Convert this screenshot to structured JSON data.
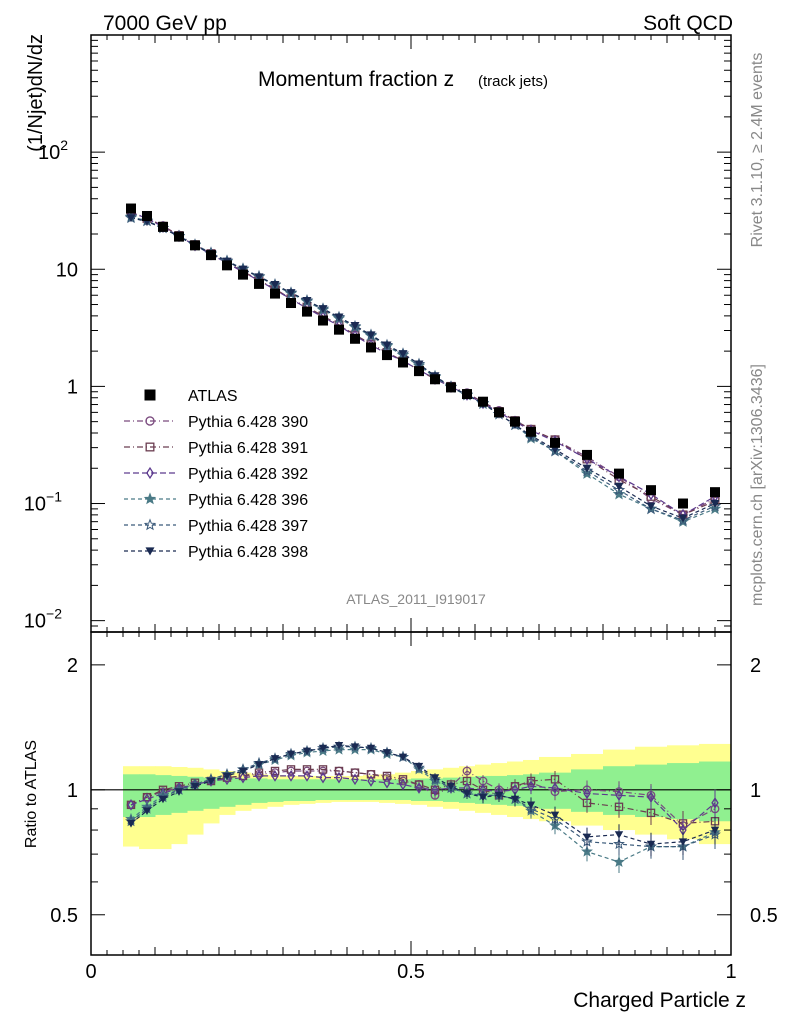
{
  "header": {
    "left": "7000 GeV pp",
    "right": "Soft QCD"
  },
  "side_labels": {
    "upper": "Rivet 3.1.10, ≥ 2.4M events",
    "lower": "mcplots.cern.ch [arXiv:1306.3436]"
  },
  "colors": {
    "band_inner": "#90f090",
    "band_outer": "#ffff90"
  },
  "chart_data": [
    {
      "type": "scatter",
      "title": "Momentum fraction z",
      "title_sub": "(track jets)",
      "watermark": "ATLAS_2011_I919017",
      "xlabel": "Charged Particle z",
      "ylabel": "(1/Njet)dN/dz",
      "xlim": [
        0,
        1.0
      ],
      "ylim": [
        0.008,
        1000
      ],
      "yscale": "log",
      "y_ticks": [
        {
          "value": 0.01,
          "base": "10",
          "exp": "−2"
        },
        {
          "value": 0.1,
          "base": "10",
          "exp": "−1"
        },
        {
          "value": 1,
          "base": "1",
          "exp": ""
        },
        {
          "value": 10,
          "base": "10",
          "exp": ""
        },
        {
          "value": 100,
          "base": "10",
          "exp": "2"
        }
      ],
      "legend_position": "left-middle",
      "x": [
        0.0625,
        0.0875,
        0.1125,
        0.1375,
        0.1625,
        0.1875,
        0.2125,
        0.2375,
        0.2625,
        0.2875,
        0.3125,
        0.3375,
        0.3625,
        0.3875,
        0.4125,
        0.4375,
        0.4625,
        0.4875,
        0.5125,
        0.5375,
        0.5625,
        0.5875,
        0.6125,
        0.6375,
        0.6625,
        0.6875,
        0.725,
        0.775,
        0.825,
        0.875,
        0.925,
        0.975
      ],
      "series": [
        {
          "name": "ATLAS",
          "color": "#000000",
          "marker": "filled-square",
          "dash": "",
          "values": [
            33,
            28.5,
            23,
            19,
            16,
            13.2,
            10.8,
            9.0,
            7.5,
            6.2,
            5.15,
            4.35,
            3.65,
            3.05,
            2.55,
            2.15,
            1.85,
            1.6,
            1.35,
            1.15,
            0.98,
            0.86,
            0.74,
            0.6,
            0.5,
            0.41,
            0.33,
            0.26,
            0.18,
            0.13,
            0.1,
            0.125
          ]
        },
        {
          "name": "Pythia 6.428 390",
          "color": "#7a4a7e",
          "marker": "open-circle",
          "dash": "6,3,1,3",
          "values": [
            30.5,
            27.5,
            23.5,
            19.5,
            16.2,
            13.6,
            11.3,
            9.5,
            8.0,
            6.7,
            5.55,
            4.7,
            3.95,
            3.35,
            2.75,
            2.3,
            1.95,
            1.65,
            1.38,
            1.15,
            1.0,
            0.88,
            0.73,
            0.62,
            0.51,
            0.43,
            0.35,
            0.25,
            0.17,
            0.11,
            0.08,
            0.11
          ]
        },
        {
          "name": "Pythia 6.428 391",
          "color": "#6b3d50",
          "marker": "open-square",
          "dash": "6,3,1,3",
          "values": [
            30.5,
            27.2,
            23.3,
            19.4,
            16.2,
            13.6,
            11.4,
            9.6,
            8.1,
            6.8,
            5.6,
            4.75,
            4.0,
            3.35,
            2.75,
            2.3,
            1.95,
            1.65,
            1.38,
            1.16,
            1.0,
            0.86,
            0.74,
            0.61,
            0.51,
            0.43,
            0.35,
            0.24,
            0.16,
            0.115,
            0.08,
            0.105
          ]
        },
        {
          "name": "Pythia 6.428 392",
          "color": "#5c3a8e",
          "marker": "open-diamond",
          "dash": "6,3",
          "values": [
            30.5,
            27.2,
            23.0,
            19.2,
            16.0,
            13.4,
            11.3,
            9.5,
            8.0,
            6.7,
            5.55,
            4.65,
            3.9,
            3.3,
            2.7,
            2.25,
            1.9,
            1.65,
            1.38,
            1.16,
            0.99,
            0.85,
            0.72,
            0.6,
            0.5,
            0.42,
            0.34,
            0.24,
            0.17,
            0.12,
            0.08,
            0.115
          ]
        },
        {
          "name": "Pythia 6.428 396",
          "color": "#4a7a86",
          "marker": "filled-star",
          "dash": "4,3",
          "values": [
            28,
            26,
            22.5,
            19.0,
            16.0,
            13.5,
            11.6,
            10.0,
            8.6,
            7.3,
            6.2,
            5.3,
            4.5,
            3.8,
            3.2,
            2.7,
            2.2,
            1.85,
            1.5,
            1.2,
            0.98,
            0.84,
            0.71,
            0.58,
            0.47,
            0.36,
            0.28,
            0.18,
            0.12,
            0.09,
            0.07,
            0.09
          ]
        },
        {
          "name": "Pythia 6.428 397",
          "color": "#3b5a7a",
          "marker": "open-star",
          "dash": "4,3",
          "values": [
            27.5,
            25.8,
            22.5,
            19.2,
            16.2,
            13.8,
            11.8,
            10.1,
            8.7,
            7.4,
            6.3,
            5.4,
            4.6,
            3.9,
            3.25,
            2.75,
            2.25,
            1.9,
            1.55,
            1.22,
            0.99,
            0.85,
            0.72,
            0.58,
            0.47,
            0.37,
            0.28,
            0.19,
            0.13,
            0.09,
            0.072,
            0.095
          ]
        },
        {
          "name": "Pythia 6.428 398",
          "color": "#1a2a52",
          "marker": "filled-triangle-down",
          "dash": "4,3",
          "values": [
            27.5,
            25.5,
            22.4,
            19.0,
            16.0,
            13.6,
            11.7,
            10.0,
            8.6,
            7.4,
            6.3,
            5.4,
            4.6,
            3.9,
            3.3,
            2.75,
            2.25,
            1.9,
            1.55,
            1.23,
            0.99,
            0.85,
            0.71,
            0.58,
            0.47,
            0.38,
            0.29,
            0.2,
            0.14,
            0.095,
            0.075,
            0.1
          ]
        }
      ]
    },
    {
      "type": "scatter",
      "ylabel": "Ratio to ATLAS",
      "xlabel": "Charged Particle z",
      "xlim": [
        0,
        1.0
      ],
      "ylim": [
        0.4,
        2.4
      ],
      "yscale": "log",
      "y_ticks": [
        {
          "value": 0.5,
          "label": "0.5"
        },
        {
          "value": 1,
          "label": "1"
        },
        {
          "value": 2,
          "label": "2"
        }
      ],
      "x_ticks": [
        {
          "value": 0,
          "label": "0"
        },
        {
          "value": 0.5,
          "label": "0.5"
        },
        {
          "value": 1,
          "label": "1"
        }
      ],
      "band_edges": [
        0.05,
        0.075,
        0.1,
        0.125,
        0.15,
        0.175,
        0.2,
        0.225,
        0.25,
        0.275,
        0.3,
        0.325,
        0.35,
        0.375,
        0.4,
        0.425,
        0.45,
        0.475,
        0.5,
        0.525,
        0.55,
        0.575,
        0.6,
        0.625,
        0.65,
        0.675,
        0.7,
        0.75,
        0.8,
        0.85,
        0.9,
        0.95,
        1.0
      ],
      "band_inner": [
        [
          0.86,
          1.09
        ],
        [
          0.86,
          1.09
        ],
        [
          0.87,
          1.085
        ],
        [
          0.88,
          1.08
        ],
        [
          0.89,
          1.075
        ],
        [
          0.9,
          1.07
        ],
        [
          0.91,
          1.07
        ],
        [
          0.92,
          1.065
        ],
        [
          0.93,
          1.065
        ],
        [
          0.935,
          1.06
        ],
        [
          0.94,
          1.06
        ],
        [
          0.94,
          1.06
        ],
        [
          0.945,
          1.06
        ],
        [
          0.945,
          1.06
        ],
        [
          0.945,
          1.06
        ],
        [
          0.945,
          1.06
        ],
        [
          0.945,
          1.06
        ],
        [
          0.945,
          1.06
        ],
        [
          0.94,
          1.065
        ],
        [
          0.94,
          1.065
        ],
        [
          0.935,
          1.07
        ],
        [
          0.93,
          1.075
        ],
        [
          0.925,
          1.08
        ],
        [
          0.92,
          1.08
        ],
        [
          0.915,
          1.085
        ],
        [
          0.91,
          1.09
        ],
        [
          0.9,
          1.1
        ],
        [
          0.885,
          1.12
        ],
        [
          0.87,
          1.14
        ],
        [
          0.86,
          1.15
        ],
        [
          0.85,
          1.16
        ],
        [
          0.84,
          1.17
        ]
      ],
      "band_outer": [
        [
          0.73,
          1.14
        ],
        [
          0.72,
          1.14
        ],
        [
          0.72,
          1.14
        ],
        [
          0.74,
          1.135
        ],
        [
          0.78,
          1.13
        ],
        [
          0.83,
          1.12
        ],
        [
          0.87,
          1.11
        ],
        [
          0.89,
          1.1
        ],
        [
          0.9,
          1.09
        ],
        [
          0.91,
          1.085
        ],
        [
          0.92,
          1.08
        ],
        [
          0.925,
          1.08
        ],
        [
          0.93,
          1.08
        ],
        [
          0.935,
          1.08
        ],
        [
          0.935,
          1.08
        ],
        [
          0.935,
          1.085
        ],
        [
          0.93,
          1.09
        ],
        [
          0.925,
          1.1
        ],
        [
          0.92,
          1.11
        ],
        [
          0.91,
          1.12
        ],
        [
          0.9,
          1.13
        ],
        [
          0.89,
          1.14
        ],
        [
          0.88,
          1.15
        ],
        [
          0.87,
          1.16
        ],
        [
          0.86,
          1.17
        ],
        [
          0.85,
          1.18
        ],
        [
          0.84,
          1.2
        ],
        [
          0.82,
          1.22
        ],
        [
          0.8,
          1.25
        ],
        [
          0.78,
          1.27
        ],
        [
          0.76,
          1.28
        ],
        [
          0.74,
          1.29
        ]
      ],
      "series": [
        {
          "name": "Pythia 6.428 390",
          "values": [
            0.92,
            0.96,
            0.99,
            1.01,
            1.03,
            1.05,
            1.07,
            1.08,
            1.09,
            1.1,
            1.11,
            1.11,
            1.11,
            1.11,
            1.1,
            1.09,
            1.07,
            1.05,
            1.03,
            0.97,
            1.02,
            1.11,
            1.05,
            1.0,
            1.02,
            1.04,
            0.99,
            1.0,
            0.99,
            0.97,
            0.82,
            0.9
          ]
        },
        {
          "name": "Pythia 6.428 391",
          "values": [
            0.92,
            0.96,
            1.0,
            1.02,
            1.04,
            1.05,
            1.07,
            1.08,
            1.1,
            1.11,
            1.12,
            1.12,
            1.12,
            1.11,
            1.1,
            1.09,
            1.08,
            1.06,
            1.03,
            1.0,
            1.03,
            1.05,
            1.0,
            0.97,
            1.02,
            1.05,
            1.06,
            0.93,
            0.91,
            0.88,
            0.83,
            0.84
          ]
        },
        {
          "name": "Pythia 6.428 392",
          "values": [
            0.92,
            0.95,
            0.98,
            1.01,
            1.03,
            1.05,
            1.06,
            1.07,
            1.08,
            1.08,
            1.08,
            1.08,
            1.07,
            1.07,
            1.06,
            1.05,
            1.04,
            1.03,
            1.01,
            1.0,
            1.01,
            1.01,
            1.0,
            0.99,
            1.0,
            1.02,
            1.01,
            0.98,
            0.97,
            0.96,
            0.8,
            0.93
          ]
        },
        {
          "name": "Pythia 6.428 396",
          "values": [
            0.85,
            0.91,
            0.97,
            1.0,
            1.03,
            1.06,
            1.09,
            1.12,
            1.15,
            1.18,
            1.21,
            1.23,
            1.24,
            1.25,
            1.25,
            1.25,
            1.22,
            1.2,
            1.12,
            1.05,
            1.01,
            0.98,
            0.97,
            0.97,
            0.95,
            0.89,
            0.82,
            0.71,
            0.67,
            0.73,
            0.73,
            0.79
          ]
        },
        {
          "name": "Pythia 6.428 397",
          "values": [
            0.84,
            0.9,
            0.96,
            1.0,
            1.03,
            1.06,
            1.09,
            1.12,
            1.16,
            1.19,
            1.22,
            1.24,
            1.26,
            1.27,
            1.27,
            1.26,
            1.23,
            1.2,
            1.13,
            1.06,
            1.01,
            0.98,
            0.97,
            0.97,
            0.95,
            0.9,
            0.85,
            0.75,
            0.74,
            0.73,
            0.73,
            0.78
          ]
        },
        {
          "name": "Pythia 6.428 398",
          "values": [
            0.83,
            0.89,
            0.95,
            0.99,
            1.02,
            1.05,
            1.08,
            1.11,
            1.15,
            1.19,
            1.22,
            1.24,
            1.26,
            1.28,
            1.27,
            1.26,
            1.23,
            1.2,
            1.14,
            1.07,
            1.02,
            0.98,
            0.96,
            0.97,
            0.95,
            0.92,
            0.87,
            0.77,
            0.78,
            0.74,
            0.75,
            0.8
          ]
        }
      ]
    }
  ]
}
